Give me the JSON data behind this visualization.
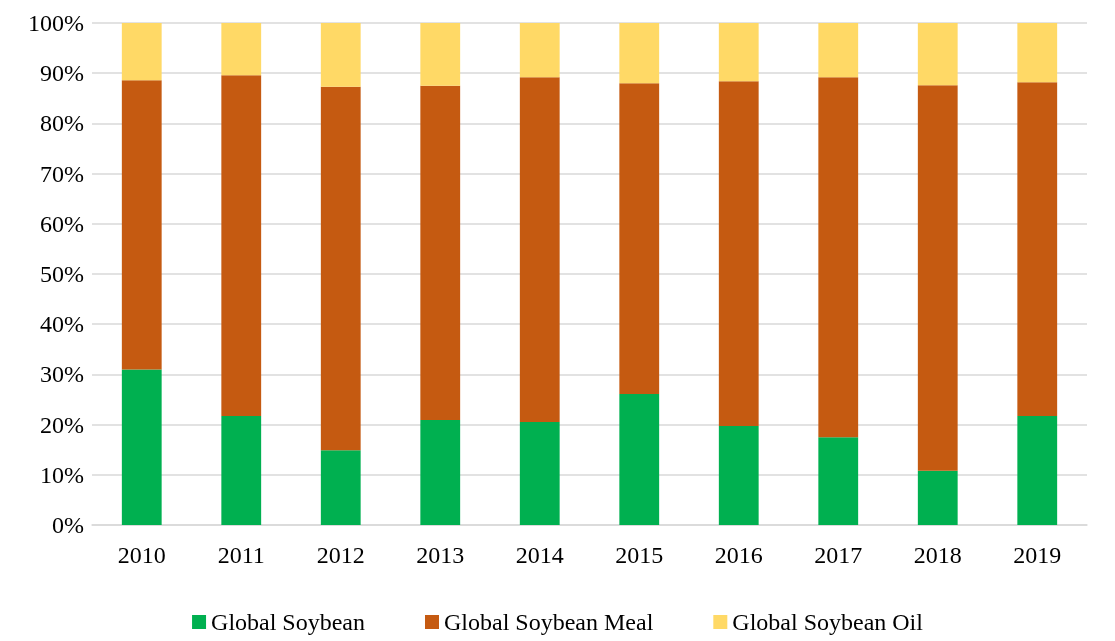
{
  "chart_data": {
    "type": "bar",
    "stacked": true,
    "categories": [
      "2010",
      "2011",
      "2012",
      "2013",
      "2014",
      "2015",
      "2016",
      "2017",
      "2018",
      "2019"
    ],
    "series": [
      {
        "name": "Global Soybean",
        "color": "#00b050",
        "values": [
          31,
          21.7,
          14.9,
          20.9,
          20.5,
          26.1,
          19.7,
          17.5,
          10.8,
          21.7
        ]
      },
      {
        "name": "Global Soybean Meal",
        "color": "#c55a11",
        "values": [
          57.6,
          67.9,
          72.4,
          66.6,
          68.7,
          61.9,
          68.7,
          71.7,
          76.8,
          66.5
        ]
      },
      {
        "name": "Global Soybean Oil",
        "color": "#ffd966",
        "values": [
          11.4,
          10.4,
          12.7,
          12.5,
          10.8,
          12,
          11.6,
          10.8,
          12.4,
          11.8
        ]
      }
    ],
    "ylim": [
      0,
      100
    ],
    "yticks": [
      {
        "value": 0,
        "label": "0%"
      },
      {
        "value": 10,
        "label": "10%"
      },
      {
        "value": 20,
        "label": "20%"
      },
      {
        "value": 30,
        "label": "30%"
      },
      {
        "value": 40,
        "label": "40%"
      },
      {
        "value": 50,
        "label": "50%"
      },
      {
        "value": 60,
        "label": "60%"
      },
      {
        "value": 70,
        "label": "70%"
      },
      {
        "value": 80,
        "label": "80%"
      },
      {
        "value": 90,
        "label": "90%"
      },
      {
        "value": 100,
        "label": "100%"
      }
    ],
    "grid": "y",
    "legend": "bottom"
  }
}
